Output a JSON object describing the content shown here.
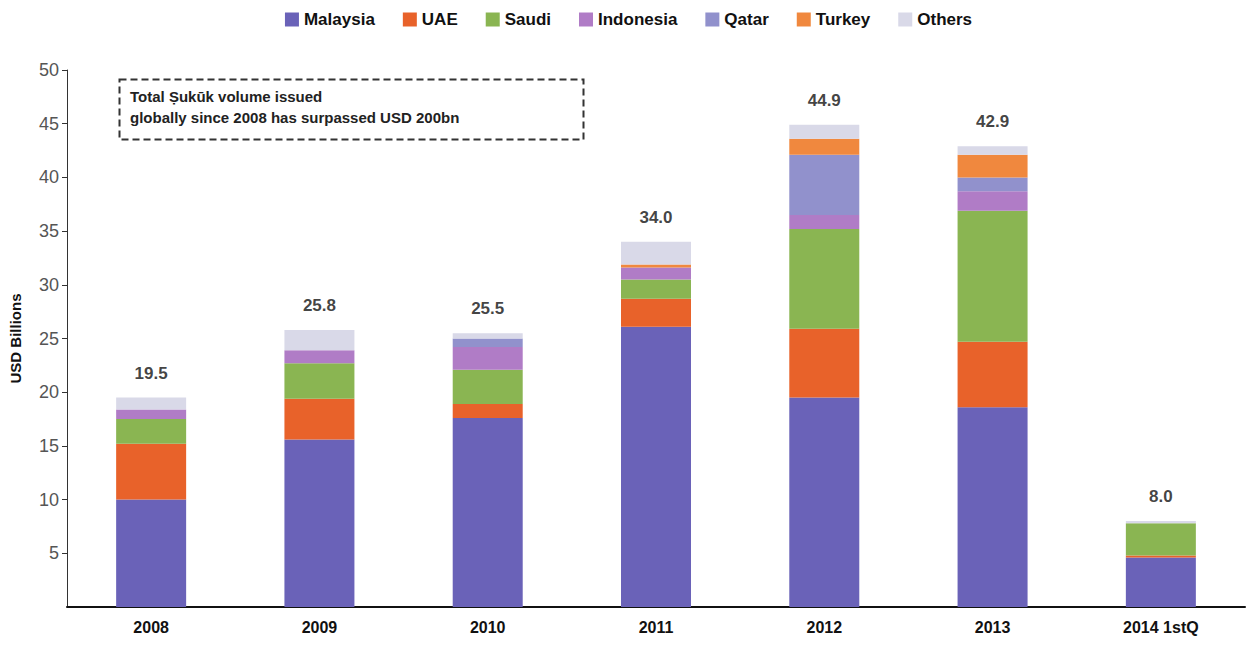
{
  "chart_data": {
    "type": "bar",
    "stacked": true,
    "annotation": "Total Ṣukūk volume issued\nglobally since 2008 has surpassed USD 200bn",
    "y_label": "USD Billions",
    "categories": [
      "2008",
      "2009",
      "2010",
      "2011",
      "2012",
      "2013",
      "2014 1stQ"
    ],
    "series": [
      {
        "name": "Malaysia",
        "color": "#6a62b8",
        "values": [
          10.0,
          15.6,
          17.6,
          26.1,
          19.5,
          18.6,
          4.6
        ]
      },
      {
        "name": "UAE",
        "color": "#e8622a",
        "values": [
          5.2,
          3.8,
          1.3,
          2.6,
          6.4,
          6.1,
          0.2
        ]
      },
      {
        "name": "Saudi",
        "color": "#8ab552",
        "values": [
          2.3,
          3.3,
          3.2,
          1.8,
          9.3,
          12.2,
          3.0
        ]
      },
      {
        "name": "Indonesia",
        "color": "#b07cc6",
        "values": [
          0.9,
          1.2,
          2.1,
          1.1,
          1.3,
          1.8,
          0
        ]
      },
      {
        "name": "Qatar",
        "color": "#9191cc",
        "values": [
          0,
          0,
          0.8,
          0,
          5.6,
          1.3,
          0
        ]
      },
      {
        "name": "Turkey",
        "color": "#f0883e",
        "values": [
          0,
          0,
          0,
          0.3,
          1.5,
          2.1,
          0
        ]
      },
      {
        "name": "Others",
        "color": "#d9d9e8",
        "values": [
          1.1,
          1.9,
          0.5,
          2.1,
          1.3,
          0.8,
          0.2
        ]
      }
    ],
    "totals": [
      19.5,
      25.8,
      25.5,
      34.0,
      44.9,
      42.9,
      8.0
    ],
    "total_labels": [
      "19.5",
      "25.8",
      "25.5",
      "34.0",
      "44.9",
      "42.9",
      "8.0"
    ],
    "ylim": [
      0,
      50
    ],
    "yticks": [
      5,
      10,
      15,
      20,
      25,
      30,
      35,
      40,
      45,
      50
    ],
    "grid": false,
    "legend": "top",
    "data_labels": false
  }
}
